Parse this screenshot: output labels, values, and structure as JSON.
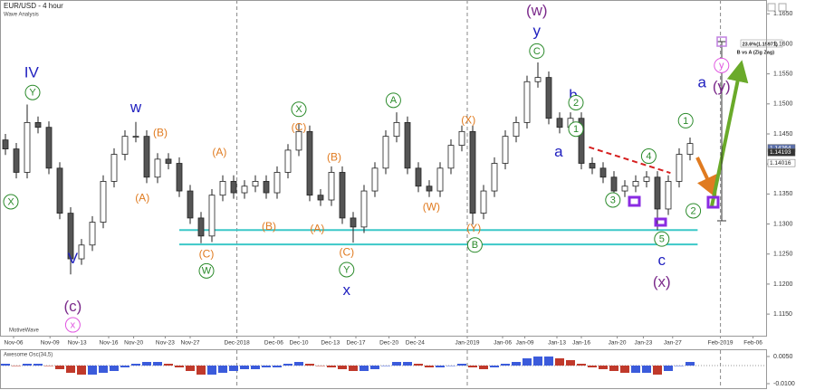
{
  "chart_data": {
    "type": "candlestick",
    "title": "EUR/USD - 4 hour",
    "subtitle": "Wave Analysis",
    "brand": "MotiveWave",
    "xlim": [
      -0.5,
      70
    ],
    "ylim": [
      1.1114,
      1.1673
    ],
    "xticks": [
      {
        "value": 0.75,
        "label": "Nov-06"
      },
      {
        "value": 4.1,
        "label": "Nov-09"
      },
      {
        "value": 6.6,
        "label": "Nov-13"
      },
      {
        "value": 9.5,
        "label": "Nov-16"
      },
      {
        "value": 11.8,
        "label": "Nov-20"
      },
      {
        "value": 14.7,
        "label": "Nov-23"
      },
      {
        "value": 17,
        "label": "Nov-27"
      },
      {
        "value": 21.3,
        "label": "Dec-2018"
      },
      {
        "value": 24.7,
        "label": "Dec-06"
      },
      {
        "value": 27,
        "label": "Dec-10"
      },
      {
        "value": 29.9,
        "label": "Dec-13"
      },
      {
        "value": 32.25,
        "label": "Dec-17"
      },
      {
        "value": 35.3,
        "label": "Dec-20"
      },
      {
        "value": 37.7,
        "label": "Dec-24"
      },
      {
        "value": 42.5,
        "label": "Jan-2019"
      },
      {
        "value": 45.75,
        "label": "Jan-06"
      },
      {
        "value": 47.8,
        "label": "Jan-09"
      },
      {
        "value": 50.75,
        "label": "Jan-13"
      },
      {
        "value": 53,
        "label": "Jan-16"
      },
      {
        "value": 56.3,
        "label": "Jan-20"
      },
      {
        "value": 58.7,
        "label": "Jan-23"
      },
      {
        "value": 61.4,
        "label": "Jan-27"
      },
      {
        "value": 65.8,
        "label": "Feb-2019"
      },
      {
        "value": 68.8,
        "label": "Feb-06"
      }
    ],
    "yticks": [
      {
        "value": 1.165,
        "label": "1.1650"
      },
      {
        "value": 1.16,
        "label": "1.1600"
      },
      {
        "value": 1.155,
        "label": "1.1550"
      },
      {
        "value": 1.15,
        "label": "1.1500"
      },
      {
        "value": 1.145,
        "label": "1.1450"
      },
      {
        "value": 1.14,
        "label": "1.1400"
      },
      {
        "value": 1.135,
        "label": "1.1350"
      },
      {
        "value": 1.13,
        "label": "1.1300"
      },
      {
        "value": 1.125,
        "label": "1.1250"
      },
      {
        "value": 1.12,
        "label": "1.1200"
      },
      {
        "value": 1.115,
        "label": "1.1150"
      }
    ],
    "up_color": "#ffffff",
    "down_color": "#555555",
    "x": [
      0,
      1,
      2,
      3,
      4,
      5,
      6,
      7,
      8,
      9,
      10,
      11,
      12,
      13,
      14,
      15,
      16,
      17,
      18,
      19,
      20,
      21,
      22,
      23,
      24,
      25,
      26,
      27,
      28,
      29,
      30,
      31,
      32,
      33,
      34,
      35,
      36,
      37,
      38,
      39,
      40,
      41,
      42,
      43,
      44,
      45,
      46,
      47,
      48,
      49,
      50,
      51,
      52,
      53,
      54,
      55,
      56,
      57,
      58,
      59,
      60,
      61,
      62,
      63
    ],
    "open": [
      1.144,
      1.1425,
      1.1386,
      1.1469,
      1.1461,
      1.1393,
      1.1318,
      1.1242,
      1.1265,
      1.1303,
      1.1371,
      1.1416,
      1.1446,
      1.1446,
      1.1378,
      1.1408,
      1.1401,
      1.1355,
      1.131,
      1.128,
      1.1348,
      1.1371,
      1.1352,
      1.1363,
      1.1371,
      1.1352,
      1.1386,
      1.1423,
      1.1454,
      1.1348,
      1.134,
      1.1386,
      1.131,
      1.1295,
      1.1355,
      1.1393,
      1.1446,
      1.1469,
      1.1393,
      1.1363,
      1.1355,
      1.1393,
      1.1431,
      1.1454,
      1.1318,
      1.1355,
      1.1401,
      1.1446,
      1.1469,
      1.1537,
      1.1544,
      1.1476,
      1.1461,
      1.1476,
      1.1401,
      1.1393,
      1.1378,
      1.1355,
      1.1363,
      1.1371,
      1.1378,
      1.1325,
      1.1371,
      1.1416
    ],
    "high": [
      1.145,
      1.1435,
      1.1499,
      1.1479,
      1.1471,
      1.1403,
      1.1328,
      1.1275,
      1.1313,
      1.1381,
      1.1426,
      1.1456,
      1.147,
      1.1456,
      1.1418,
      1.1418,
      1.1411,
      1.1365,
      1.132,
      1.1358,
      1.1381,
      1.1381,
      1.1373,
      1.1381,
      1.1381,
      1.1396,
      1.1433,
      1.1468,
      1.1464,
      1.1358,
      1.1396,
      1.1396,
      1.132,
      1.1365,
      1.1403,
      1.1456,
      1.1486,
      1.1479,
      1.1403,
      1.1373,
      1.1403,
      1.1441,
      1.1464,
      1.1464,
      1.1365,
      1.1411,
      1.1456,
      1.1479,
      1.1547,
      1.1569,
      1.1554,
      1.1486,
      1.1486,
      1.1486,
      1.1411,
      1.1403,
      1.1388,
      1.1373,
      1.1381,
      1.1388,
      1.1388,
      1.1381,
      1.1426,
      1.1444
    ],
    "low": [
      1.1415,
      1.1376,
      1.1376,
      1.1451,
      1.1383,
      1.1308,
      1.1216,
      1.1232,
      1.1255,
      1.1293,
      1.1361,
      1.1406,
      1.1436,
      1.1368,
      1.1368,
      1.1391,
      1.1345,
      1.13,
      1.1268,
      1.127,
      1.1338,
      1.1342,
      1.1342,
      1.1353,
      1.1342,
      1.1342,
      1.1376,
      1.1413,
      1.1338,
      1.133,
      1.133,
      1.13,
      1.1269,
      1.1285,
      1.1345,
      1.1383,
      1.1436,
      1.1383,
      1.1353,
      1.1345,
      1.1345,
      1.1383,
      1.1421,
      1.1299,
      1.1308,
      1.1345,
      1.1391,
      1.1436,
      1.1459,
      1.1527,
      1.1466,
      1.1451,
      1.1451,
      1.1391,
      1.1383,
      1.1368,
      1.1345,
      1.1345,
      1.1353,
      1.1361,
      1.129,
      1.1315,
      1.1361,
      1.1406
    ],
    "close": [
      1.1425,
      1.1386,
      1.1469,
      1.1461,
      1.1393,
      1.1318,
      1.1242,
      1.1265,
      1.1303,
      1.1371,
      1.1416,
      1.1446,
      1.1446,
      1.1378,
      1.1408,
      1.1401,
      1.1355,
      1.131,
      1.128,
      1.1348,
      1.1371,
      1.1352,
      1.1363,
      1.1371,
      1.1352,
      1.1386,
      1.1423,
      1.1454,
      1.1348,
      1.134,
      1.1386,
      1.131,
      1.1295,
      1.1355,
      1.1393,
      1.1446,
      1.1469,
      1.1393,
      1.1363,
      1.1355,
      1.1393,
      1.1431,
      1.1454,
      1.1318,
      1.1355,
      1.1401,
      1.1446,
      1.1469,
      1.1537,
      1.1544,
      1.1476,
      1.1461,
      1.1476,
      1.1401,
      1.1393,
      1.1378,
      1.1355,
      1.1363,
      1.1371,
      1.1378,
      1.1325,
      1.1371,
      1.1416,
      1.1434
    ],
    "price_tags": [
      {
        "value": 1.14264,
        "color": "#5b6fa8"
      },
      {
        "value": 1.14193,
        "color": "#333333"
      },
      {
        "value": 1.14016,
        "color": "#ffffff"
      }
    ],
    "hlines": [
      {
        "y": 1.129,
        "x": [
          16,
          63.7
        ],
        "color": "#3cc8c8"
      },
      {
        "y": 1.1266,
        "x": [
          16,
          63.7
        ],
        "color": "#3cc8c8"
      }
    ],
    "trendlines": [
      {
        "x": [
          53.7,
          61.2
        ],
        "y": [
          1.1428,
          1.1385
        ],
        "color": "#d62020"
      }
    ],
    "annotations": [
      {
        "text": "IV",
        "x": 2.4,
        "y": 1.1552,
        "color": "#1f1fbf",
        "style": "big"
      },
      {
        "text": "Y",
        "x": 2.5,
        "y": 1.1519,
        "color": "#2a8a2a",
        "style": "circle"
      },
      {
        "text": "X",
        "x": 0.5,
        "y": 1.1337,
        "color": "#2a8a2a",
        "style": "circle"
      },
      {
        "text": "V",
        "x": 6.2,
        "y": 1.1242,
        "color": "#1f1fbf",
        "style": "big"
      },
      {
        "text": "(c)",
        "x": 6.2,
        "y": 1.1162,
        "color": "#7b2a8b",
        "style": "big"
      },
      {
        "text": "x",
        "x": 6.2,
        "y": 1.1132,
        "color": "#e055e0",
        "style": "circle"
      },
      {
        "text": "w",
        "x": 12,
        "y": 1.1494,
        "color": "#1f1fbf",
        "style": "big"
      },
      {
        "text": "(B)",
        "x": 14.25,
        "y": 1.1452,
        "color": "#e07b20",
        "style": "mid"
      },
      {
        "text": "(A)",
        "x": 12.6,
        "y": 1.1343,
        "color": "#e07b20",
        "style": "mid"
      },
      {
        "text": "(C)",
        "x": 18.5,
        "y": 1.125,
        "color": "#e07b20",
        "style": "mid"
      },
      {
        "text": "W",
        "x": 18.5,
        "y": 1.1222,
        "color": "#2a8a2a",
        "style": "circle"
      },
      {
        "text": "(A)",
        "x": 19.7,
        "y": 1.1419,
        "color": "#e07b20",
        "style": "mid"
      },
      {
        "text": "(B)",
        "x": 24.25,
        "y": 1.1296,
        "color": "#e07b20",
        "style": "mid"
      },
      {
        "text": "X",
        "x": 27,
        "y": 1.1491,
        "color": "#2a8a2a",
        "style": "circle"
      },
      {
        "text": "(C)",
        "x": 27,
        "y": 1.1461,
        "color": "#e07b20",
        "style": "mid"
      },
      {
        "text": "(A)",
        "x": 28.7,
        "y": 1.1292,
        "color": "#e07b20",
        "style": "mid"
      },
      {
        "text": "(B)",
        "x": 30.25,
        "y": 1.1411,
        "color": "#e07b20",
        "style": "mid"
      },
      {
        "text": "(C)",
        "x": 31.4,
        "y": 1.1253,
        "color": "#e07b20",
        "style": "mid"
      },
      {
        "text": "Y",
        "x": 31.4,
        "y": 1.1224,
        "color": "#2a8a2a",
        "style": "circle"
      },
      {
        "text": "x",
        "x": 31.4,
        "y": 1.1189,
        "color": "#1f1fbf",
        "style": "big"
      },
      {
        "text": "A",
        "x": 35.7,
        "y": 1.1506,
        "color": "#2a8a2a",
        "style": "circle"
      },
      {
        "text": "(W)",
        "x": 39.2,
        "y": 1.1328,
        "color": "#e07b20",
        "style": "mid"
      },
      {
        "text": "(X)",
        "x": 42.6,
        "y": 1.1473,
        "color": "#e07b20",
        "style": "mid"
      },
      {
        "text": "(Y)",
        "x": 43.1,
        "y": 1.1293,
        "color": "#e07b20",
        "style": "mid"
      },
      {
        "text": "B",
        "x": 43.2,
        "y": 1.1265,
        "color": "#2a8a2a",
        "style": "circle"
      },
      {
        "text": "(w)",
        "x": 48.9,
        "y": 1.1655,
        "color": "#7b2a8b",
        "style": "big"
      },
      {
        "text": "y",
        "x": 48.9,
        "y": 1.1621,
        "color": "#1f1fbf",
        "style": "big"
      },
      {
        "text": "C",
        "x": 48.9,
        "y": 1.1588,
        "color": "#2a8a2a",
        "style": "circle"
      },
      {
        "text": "b",
        "x": 52.25,
        "y": 1.1514,
        "color": "#1f1fbf",
        "style": "big"
      },
      {
        "text": "2",
        "x": 52.5,
        "y": 1.1502,
        "color": "#2a8a2a",
        "style": "circle"
      },
      {
        "text": "1",
        "x": 52.5,
        "y": 1.1458,
        "color": "#2a8a2a",
        "style": "circle"
      },
      {
        "text": "a",
        "x": 50.9,
        "y": 1.142,
        "color": "#1f1fbf",
        "style": "big"
      },
      {
        "text": "3",
        "x": 55.9,
        "y": 1.134,
        "color": "#2a8a2a",
        "style": "circle"
      },
      {
        "text": "4",
        "x": 59.2,
        "y": 1.1413,
        "color": "#2a8a2a",
        "style": "circle"
      },
      {
        "text": "5",
        "x": 60.4,
        "y": 1.1275,
        "color": "#2a8a2a",
        "style": "circle"
      },
      {
        "text": "c",
        "x": 60.4,
        "y": 1.1239,
        "color": "#1f1fbf",
        "style": "big"
      },
      {
        "text": "(x)",
        "x": 60.4,
        "y": 1.1203,
        "color": "#7b2a8b",
        "style": "big"
      },
      {
        "text": "1",
        "x": 62.6,
        "y": 1.1472,
        "color": "#2a8a2a",
        "style": "circle"
      },
      {
        "text": "2",
        "x": 63.3,
        "y": 1.1322,
        "color": "#2a8a2a",
        "style": "circle"
      },
      {
        "text": "a",
        "x": 64.1,
        "y": 1.1535,
        "color": "#1f1fbf",
        "style": "big"
      },
      {
        "text": "y",
        "x": 65.9,
        "y": 1.1564,
        "color": "#e055e0",
        "style": "circle"
      },
      {
        "text": "(y)",
        "x": 65.9,
        "y": 1.1528,
        "color": "#7b2a8b",
        "style": "big"
      },
      {
        "text": "23.6%(1.15971)",
        "x": 67.8,
        "y": 1.16,
        "color": "#222222",
        "style": "small"
      },
      {
        "text": "B vs A (Zig Zag)",
        "x": 67.3,
        "y": 1.1586,
        "color": "#222222",
        "style": "small"
      }
    ],
    "oscillator": {
      "title": "Awesome Osc(34,5)",
      "ylim": [
        -0.012,
        0.008
      ],
      "yticks": [
        {
          "value": 0.005,
          "label": "0.0050"
        },
        {
          "value": -0.01,
          "label": "-0.0100"
        }
      ],
      "up_color": "#3b5bdb",
      "down_color": "#c0392b",
      "values": [
        0.001,
        0.0,
        0.001,
        0.001,
        0.0,
        -0.002,
        -0.004,
        -0.005,
        -0.005,
        -0.004,
        -0.003,
        -0.001,
        0.001,
        0.002,
        0.002,
        0.001,
        -0.001,
        -0.003,
        -0.005,
        -0.005,
        -0.004,
        -0.003,
        -0.002,
        -0.002,
        -0.001,
        -0.001,
        0.001,
        0.002,
        0.001,
        0.0,
        -0.001,
        -0.002,
        -0.003,
        -0.003,
        -0.002,
        0.0,
        0.002,
        0.002,
        0.001,
        -0.001,
        -0.001,
        0.0,
        0.001,
        -0.001,
        -0.002,
        -0.001,
        0.001,
        0.002,
        0.004,
        0.005,
        0.005,
        0.004,
        0.003,
        0.001,
        -0.001,
        -0.002,
        -0.003,
        -0.004,
        -0.004,
        -0.004,
        -0.005,
        -0.003,
        0.0,
        0.002
      ]
    }
  }
}
